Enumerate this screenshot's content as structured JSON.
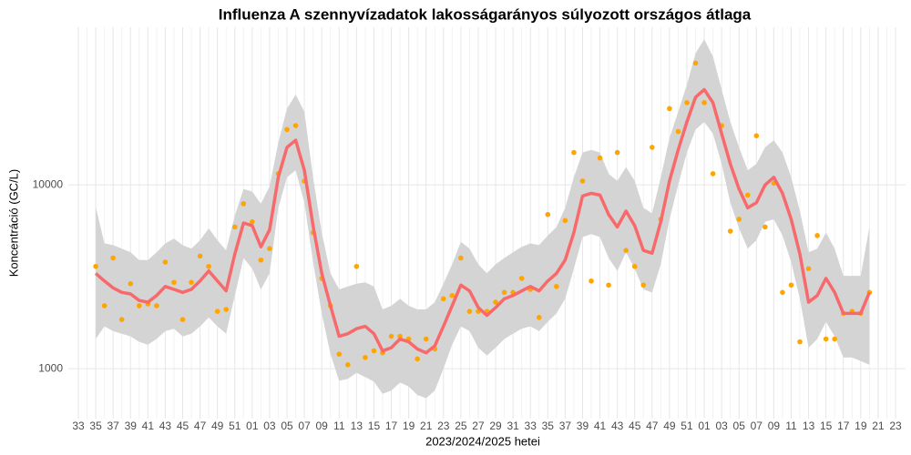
{
  "chart_data": {
    "type": "line",
    "title": "Influenza A szennyvízadatok lakosságarányos súlyozott országos átlaga",
    "x_label": "2023/2024/2025 hetei",
    "y_label": "Koncentráció (GC/L)",
    "log_scale_y": true,
    "grid": true,
    "ylim": [
      535,
      72000
    ],
    "yticks": [
      1000,
      10000
    ],
    "categories": [
      "33",
      null,
      "35",
      null,
      "37",
      null,
      "39",
      null,
      "41",
      null,
      "43",
      null,
      "45",
      null,
      "47",
      null,
      "49",
      null,
      "51",
      null,
      "01",
      null,
      "03",
      null,
      "05",
      null,
      "07",
      null,
      "09",
      null,
      "11",
      null,
      "13",
      null,
      "15",
      null,
      "17",
      null,
      "19",
      null,
      "21",
      null,
      "23",
      null,
      "25",
      null,
      "27",
      null,
      "29",
      null,
      "31",
      null,
      "33",
      null,
      "35",
      null,
      "37",
      null,
      "39",
      null,
      "41",
      null,
      "43",
      null,
      "45",
      null,
      "47",
      null,
      "49",
      null,
      "51",
      null,
      "01",
      null,
      "03",
      null,
      "05",
      null,
      "07",
      null,
      "09",
      null,
      "11",
      null,
      "13",
      null,
      "15",
      null,
      "17",
      null,
      "19",
      null,
      "21",
      null,
      "23"
    ],
    "band": {
      "color": "#d4d4d4",
      "lower": [
        null,
        null,
        1450,
        1700,
        1600,
        1550,
        1500,
        1400,
        1350,
        1450,
        1600,
        1650,
        1500,
        1550,
        1700,
        1900,
        1700,
        1550,
        2500,
        4000,
        3500,
        2700,
        3300,
        7500,
        11000,
        12000,
        8000,
        3800,
        2000,
        1200,
        860,
        880,
        950,
        900,
        850,
        730,
        760,
        840,
        800,
        720,
        690,
        760,
        1000,
        1350,
        1700,
        1600,
        1300,
        1180,
        1300,
        1450,
        1550,
        1650,
        1700,
        1600,
        1800,
        2000,
        2400,
        3500,
        5200,
        5400,
        5200,
        4000,
        3400,
        4300,
        3500,
        2700,
        2600,
        3700,
        6500,
        10000,
        15000,
        20000,
        22000,
        19000,
        13000,
        8000,
        5800,
        4500,
        5000,
        6300,
        6500,
        5300,
        3800,
        2400,
        1300,
        1450,
        1800,
        1500,
        1150,
        1150,
        1100,
        1050,
        null,
        null,
        null
      ],
      "upper": [
        null,
        null,
        7600,
        4800,
        4700,
        4500,
        4300,
        3900,
        3900,
        4300,
        4800,
        5100,
        4700,
        4500,
        5000,
        5800,
        5000,
        4400,
        6800,
        9500,
        9200,
        7900,
        9800,
        17000,
        26000,
        31000,
        25000,
        11000,
        5500,
        3300,
        2700,
        2800,
        2900,
        2950,
        2800,
        2100,
        2200,
        2400,
        2200,
        2100,
        2100,
        2300,
        2900,
        3700,
        4900,
        4500,
        3700,
        3300,
        3700,
        4000,
        4300,
        4600,
        4800,
        4700,
        5300,
        5900,
        7500,
        11000,
        15000,
        15500,
        15000,
        11500,
        10500,
        12500,
        10500,
        7500,
        7000,
        11000,
        18000,
        25000,
        35000,
        52000,
        62000,
        50000,
        33000,
        22000,
        16000,
        12000,
        13000,
        16000,
        17500,
        15000,
        11000,
        7200,
        4300,
        4500,
        5500,
        4500,
        3200,
        3200,
        3200,
        5900,
        null,
        null,
        null
      ]
    },
    "trend": {
      "color": "#f8696b",
      "values": [
        null,
        null,
        3300,
        3000,
        2750,
        2600,
        2550,
        2350,
        2300,
        2500,
        2800,
        2700,
        2600,
        2700,
        3000,
        3400,
        3000,
        2650,
        4200,
        6200,
        6000,
        4600,
        5700,
        11000,
        16000,
        17500,
        12000,
        6000,
        3300,
        2200,
        1500,
        1550,
        1650,
        1700,
        1550,
        1250,
        1300,
        1450,
        1400,
        1280,
        1220,
        1330,
        1700,
        2200,
        2850,
        2650,
        2150,
        1950,
        2150,
        2400,
        2500,
        2650,
        2800,
        2650,
        3000,
        3300,
        3900,
        5500,
        8700,
        9000,
        8800,
        6900,
        5900,
        7200,
        6000,
        4400,
        4250,
        6300,
        10500,
        15500,
        22000,
        30000,
        33000,
        28000,
        19000,
        13000,
        9500,
        7500,
        8000,
        10000,
        11000,
        9000,
        6500,
        4200,
        2300,
        2500,
        3100,
        2600,
        2000,
        2000,
        2000,
        2600,
        null,
        null,
        null
      ]
    },
    "points": {
      "color": "#ffa500",
      "values": [
        null,
        null,
        3600,
        2200,
        4000,
        1850,
        2900,
        2200,
        2250,
        2200,
        3800,
        2950,
        1850,
        2950,
        4100,
        3600,
        2050,
        2100,
        5900,
        7900,
        6300,
        3900,
        4500,
        11500,
        20000,
        21000,
        10500,
        5500,
        3100,
        2200,
        1200,
        1050,
        3600,
        1150,
        1250,
        1220,
        1500,
        1500,
        1450,
        1130,
        1450,
        1280,
        2400,
        2500,
        4000,
        2050,
        2050,
        2050,
        2300,
        2600,
        2600,
        3100,
        2700,
        1900,
        6900,
        2800,
        6400,
        15000,
        10500,
        3000,
        14000,
        2850,
        15000,
        4400,
        3600,
        2850,
        16000,
        6500,
        26000,
        19500,
        28000,
        46000,
        28000,
        11500,
        21000,
        5600,
        6500,
        8800,
        18500,
        5900,
        10200,
        2600,
        2850,
        1400,
        3500,
        5300,
        1450,
        1450,
        2000,
        2050,
        2000,
        2600,
        null,
        null,
        null
      ]
    }
  }
}
